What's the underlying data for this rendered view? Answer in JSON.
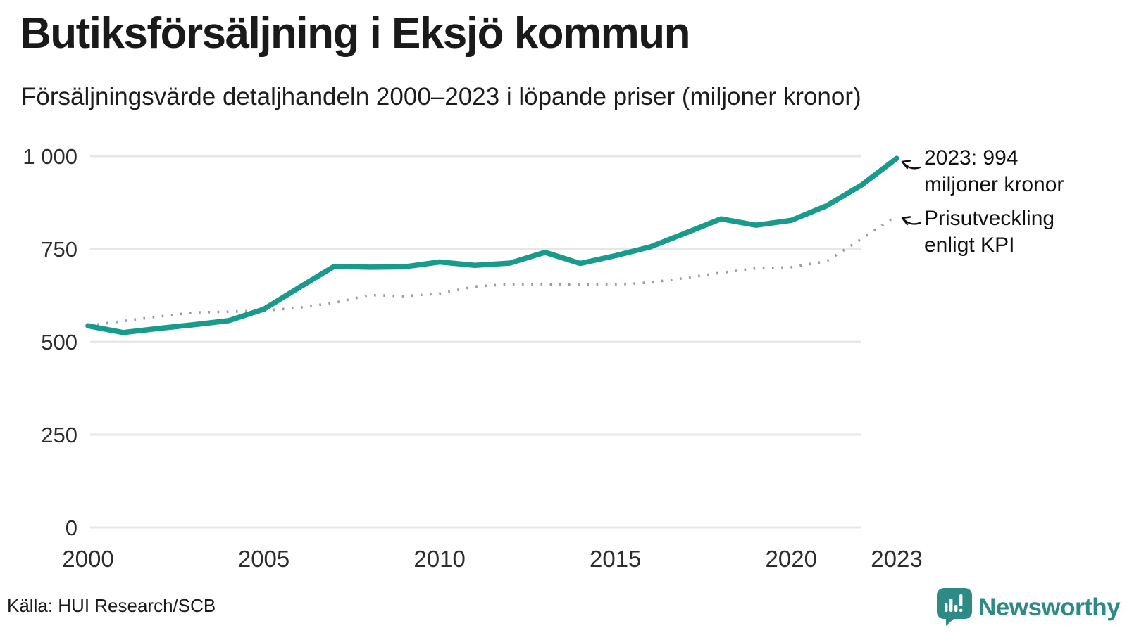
{
  "header": {
    "title": "Butiksförsäljning i Eksjö kommun",
    "subtitle": "Försäljningsvärde detaljhandeln 2000–2023 i löpande priser (miljoner kronor)"
  },
  "source": {
    "label": "Källa: HUI Research/SCB"
  },
  "branding": {
    "logo_text": "Newsworthy",
    "logo_color": "#2e8a85"
  },
  "colors": {
    "sales_line": "#189a8c",
    "kpi_line": "#9a9a9a",
    "gridline": "#e7e7e7",
    "text": "#1a1a1a"
  },
  "chart_data": {
    "type": "line",
    "title": "Butiksförsäljning i Eksjö kommun",
    "subtitle": "Försäljningsvärde detaljhandeln 2000–2023 i löpande priser (miljoner kronor)",
    "xlabel": "",
    "ylabel": "miljoner kronor",
    "ylim": [
      0,
      1000
    ],
    "grid": true,
    "x": [
      2000,
      2001,
      2002,
      2003,
      2004,
      2005,
      2006,
      2007,
      2008,
      2009,
      2010,
      2011,
      2012,
      2013,
      2014,
      2015,
      2016,
      2017,
      2018,
      2019,
      2020,
      2021,
      2022,
      2023
    ],
    "series": [
      {
        "name": "Butiksförsäljning i löpande priser",
        "color": "#189a8c",
        "style": "solid",
        "values": [
          543,
          525,
          536,
          546,
          557,
          588,
          646,
          703,
          701,
          702,
          715,
          706,
          712,
          741,
          711,
          732,
          756,
          793,
          831,
          814,
          827,
          866,
          922,
          994
        ]
      },
      {
        "name": "Prisutveckling enligt KPI",
        "color": "#9a9a9a",
        "style": "dotted",
        "values": [
          543,
          556,
          568,
          579,
          581,
          584,
          592,
          605,
          626,
          623,
          630,
          649,
          655,
          655,
          654,
          654,
          660,
          672,
          686,
          698,
          701,
          717,
          777,
          840
        ]
      }
    ],
    "yticks": {
      "values": [
        0,
        250,
        500,
        750,
        1000
      ],
      "labels": [
        "0",
        "250",
        "500",
        "750",
        "1 000"
      ]
    },
    "xticks": {
      "values": [
        2000,
        2005,
        2010,
        2015,
        2020,
        2023
      ],
      "labels": [
        "2000",
        "2005",
        "2010",
        "2015",
        "2020",
        "2023"
      ]
    },
    "annotations": [
      {
        "target": "sales-2023",
        "line1": "2023: 994",
        "line2": "miljoner kronor"
      },
      {
        "target": "kpi-2023",
        "line1": "Prisutveckling",
        "line2": "enligt KPI"
      }
    ]
  }
}
